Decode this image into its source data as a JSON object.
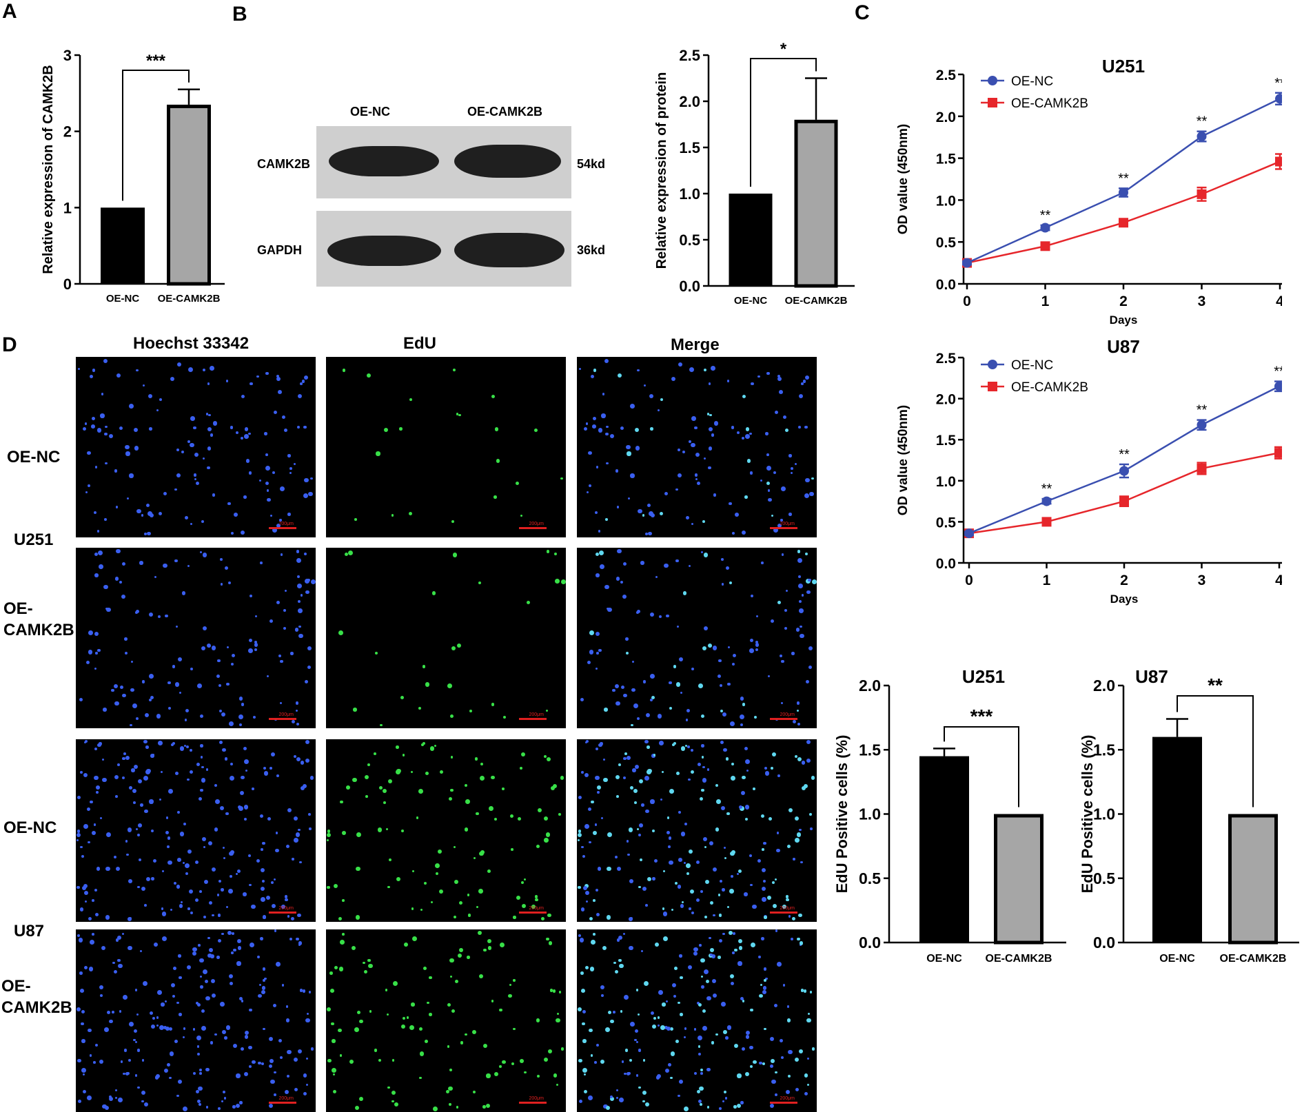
{
  "panels": {
    "a": "A",
    "b": "B",
    "c": "C",
    "d": "D"
  },
  "western_blot": {
    "lane_labels": [
      "OE-NC",
      "OE-CAMK2B"
    ],
    "rows": [
      {
        "protein": "CAMK2B",
        "size": "54kd"
      },
      {
        "protein": "GAPDH",
        "size": "36kd"
      }
    ]
  },
  "edu": {
    "columns": [
      "Hoechst 33342",
      "EdU",
      "Merge"
    ],
    "rows": [
      {
        "group": "OE-NC",
        "cell_line": "U251",
        "density": "low"
      },
      {
        "group": "OE-CAMK2B",
        "cell_line": "U251",
        "density": "low"
      },
      {
        "group": "OE-NC",
        "cell_line": "U87",
        "density": "high"
      },
      {
        "group": "OE-CAMK2B",
        "cell_line": "U87",
        "density": "high"
      }
    ],
    "cell_line_labels": [
      "U251",
      "U87"
    ],
    "group_labels": [
      "OE-NC",
      "OE-\nCAMK2B",
      "OE-NC",
      "OE-\nCAMK2B"
    ],
    "scale_bar": "200μm",
    "colors": {
      "hoechst": "#3a5ff0",
      "edu": "#38e048",
      "merge_cyan": "#5fd8f0"
    }
  },
  "chart_data": [
    {
      "id": "A",
      "type": "bar",
      "categories": [
        "OE-NC",
        "OE-CAMK2B"
      ],
      "values": [
        1.0,
        2.35
      ],
      "errors": [
        0,
        0.2
      ],
      "ylabel": "Relative expression of CAMK2B",
      "ylim": [
        0,
        3
      ],
      "yticks": [
        0,
        1,
        2,
        3
      ],
      "significance": "***",
      "bar_colors": [
        "#000000",
        "#a6a6a6"
      ]
    },
    {
      "id": "B",
      "type": "bar",
      "categories": [
        "OE-NC",
        "OE-CAMK2B"
      ],
      "values": [
        1.0,
        1.8
      ],
      "errors": [
        0,
        0.45
      ],
      "ylabel": "Relative expression of protein",
      "ylim": [
        0,
        2.5
      ],
      "yticks": [
        0.0,
        0.5,
        1.0,
        1.5,
        2.0,
        2.5
      ],
      "significance": "*",
      "bar_colors": [
        "#000000",
        "#a6a6a6"
      ]
    },
    {
      "id": "C-U251",
      "type": "line",
      "title": "U251",
      "x": [
        0,
        1,
        2,
        3,
        4
      ],
      "xlabel": "Days",
      "ylabel": "OD value (450nm)",
      "ylim": [
        0,
        2.5
      ],
      "yticks": [
        0.0,
        0.5,
        1.0,
        1.5,
        2.0,
        2.5
      ],
      "legend_position": "top-left",
      "series": [
        {
          "name": "OE-NC",
          "values": [
            0.25,
            0.67,
            1.09,
            1.76,
            2.21
          ],
          "errors": [
            0.02,
            0.03,
            0.05,
            0.06,
            0.07
          ],
          "color": "#3a4fb0",
          "marker": "circle"
        },
        {
          "name": "OE-CAMK2B",
          "values": [
            0.25,
            0.45,
            0.73,
            1.07,
            1.46
          ],
          "errors": [
            0.02,
            0.03,
            0.03,
            0.08,
            0.09
          ],
          "color": "#e6262b",
          "marker": "square"
        }
      ],
      "annotations": [
        "",
        "**",
        "**",
        "**",
        "**"
      ]
    },
    {
      "id": "C-U87",
      "type": "line",
      "title": "U87",
      "x": [
        0,
        1,
        2,
        3,
        4
      ],
      "xlabel": "Days",
      "ylabel": "OD value (450nm)",
      "ylim": [
        0,
        2.5
      ],
      "yticks": [
        0.0,
        0.5,
        1.0,
        1.5,
        2.0,
        2.5
      ],
      "legend_position": "top-left",
      "series": [
        {
          "name": "OE-NC",
          "values": [
            0.36,
            0.75,
            1.12,
            1.68,
            2.15
          ],
          "errors": [
            0.02,
            0.03,
            0.08,
            0.06,
            0.06
          ],
          "color": "#3a4fb0",
          "marker": "circle"
        },
        {
          "name": "OE-CAMK2B",
          "values": [
            0.36,
            0.5,
            0.75,
            1.15,
            1.34
          ],
          "errors": [
            0.02,
            0.03,
            0.06,
            0.07,
            0.07
          ],
          "color": "#e6262b",
          "marker": "square"
        }
      ],
      "annotations": [
        "",
        "**",
        "**",
        "**",
        "**"
      ]
    },
    {
      "id": "D-U251",
      "type": "bar",
      "title": "U251",
      "categories": [
        "OE-NC",
        "OE-CAMK2B"
      ],
      "values": [
        1.45,
        1.0
      ],
      "errors": [
        0.06,
        0
      ],
      "ylabel": "EdU Positive cells (%)",
      "ylim": [
        0,
        2.0
      ],
      "yticks": [
        0.0,
        0.5,
        1.0,
        1.5,
        2.0
      ],
      "significance": "***",
      "bar_colors": [
        "#000000",
        "#a6a6a6"
      ]
    },
    {
      "id": "D-U87",
      "type": "bar",
      "title": "U87",
      "categories": [
        "OE-NC",
        "OE-CAMK2B"
      ],
      "values": [
        1.6,
        1.0
      ],
      "errors": [
        0.14,
        0
      ],
      "ylabel": "EdU Positive cells (%)",
      "ylim": [
        0,
        2.0
      ],
      "yticks": [
        0.0,
        0.5,
        1.0,
        1.5,
        2.0
      ],
      "significance": "**",
      "bar_colors": [
        "#000000",
        "#a6a6a6"
      ]
    }
  ]
}
